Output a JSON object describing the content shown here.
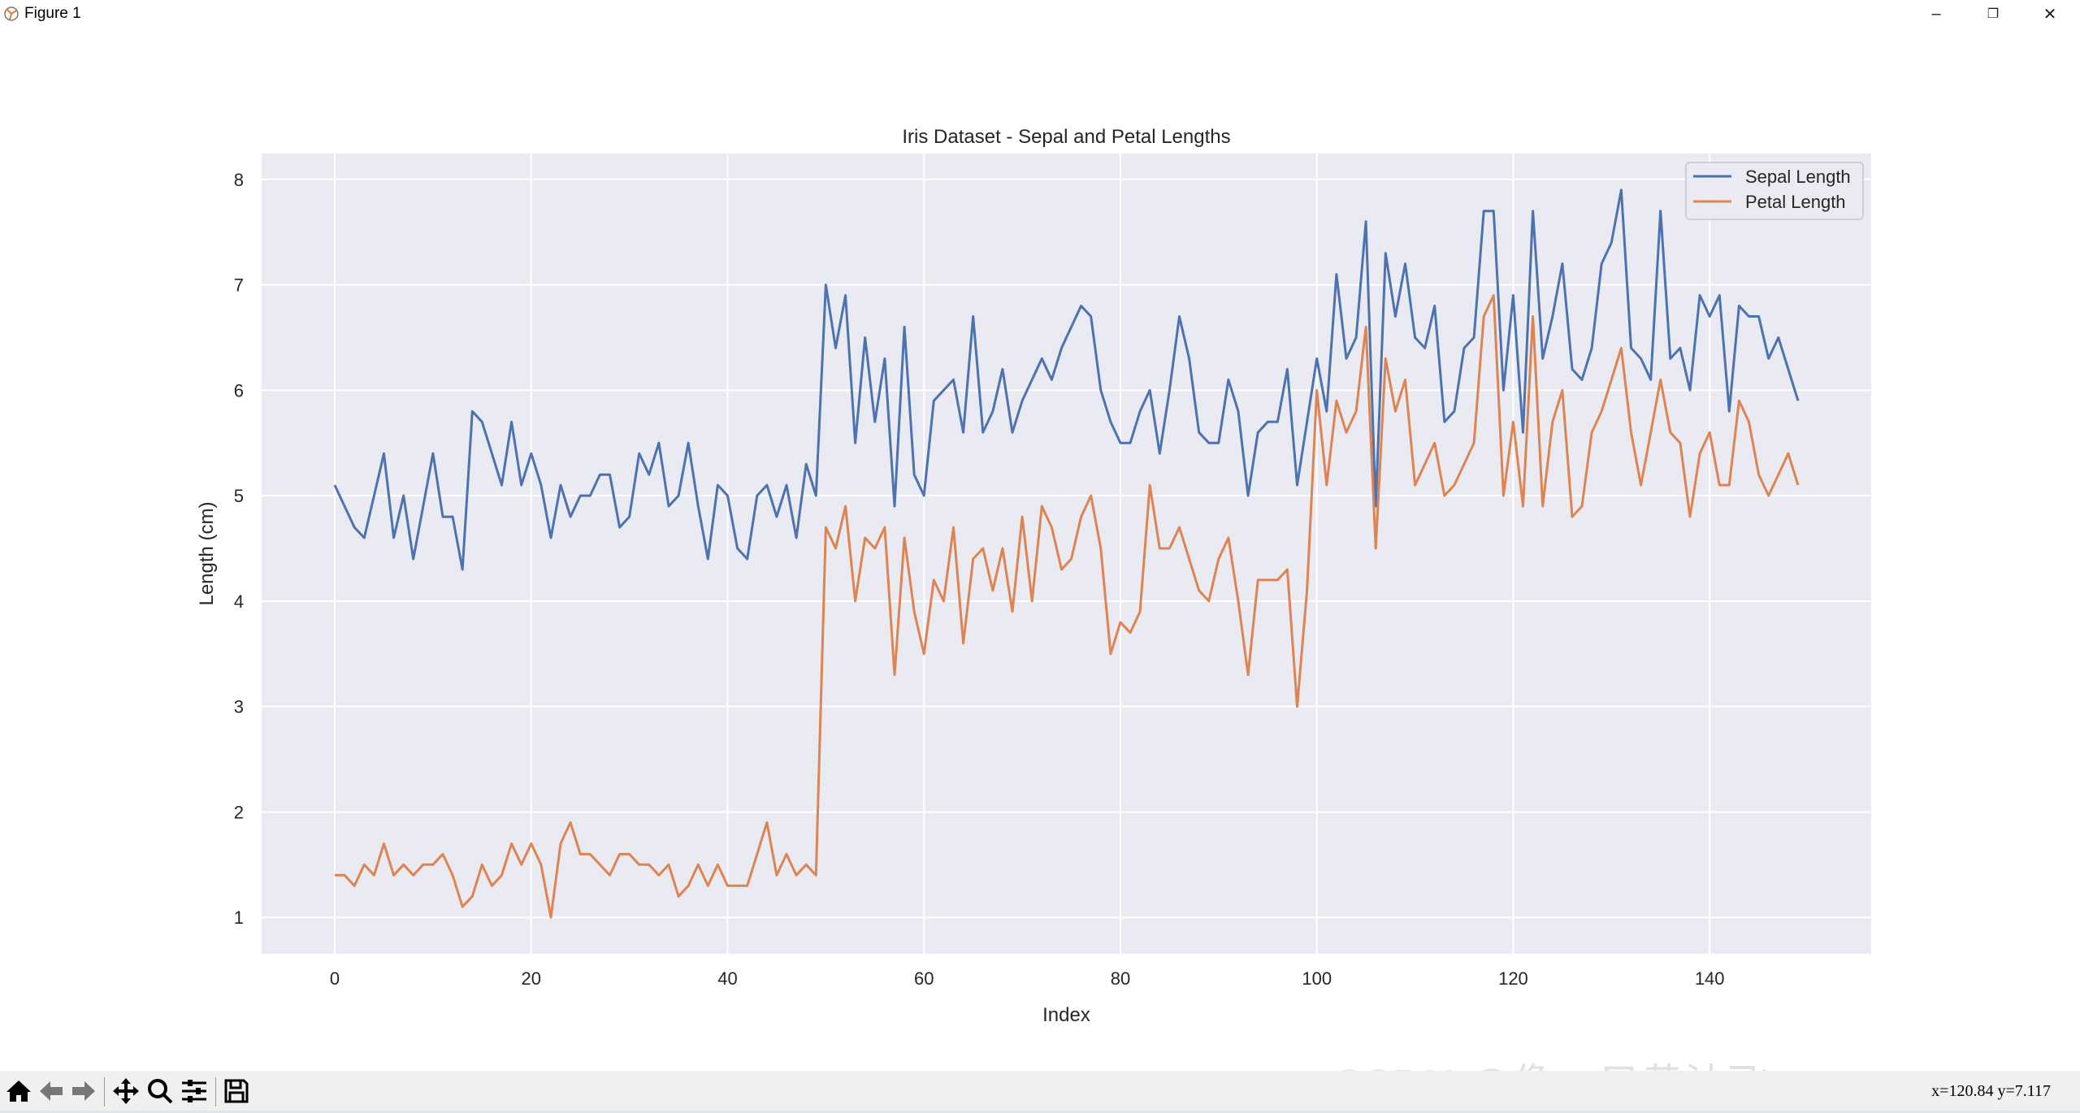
{
  "window": {
    "title": "Figure 1",
    "minimize": "–",
    "restore": "❐",
    "close": "✕"
  },
  "toolbar": {
    "buttons": [
      "home-icon",
      "back-icon",
      "forward-icon",
      "pan-icon",
      "zoom-icon",
      "configure-subplots-icon",
      "save-icon"
    ],
    "coords": "x=120.84  y=7.117"
  },
  "watermark": "CSDN @像一只黄油飞",
  "colors": {
    "sepal": "#4c72b0",
    "petal": "#dd8452",
    "axes_bg": "#eaeaf2",
    "grid": "#ffffff"
  },
  "chart_data": {
    "type": "line",
    "title": "Iris Dataset - Sepal and Petal Lengths",
    "xlabel": "Index",
    "ylabel": "Length (cm)",
    "xlim": [
      -7.45,
      156.45
    ],
    "ylim": [
      0.655,
      8.245
    ],
    "xticks": [
      0,
      20,
      40,
      60,
      80,
      100,
      120,
      140
    ],
    "yticks": [
      1,
      2,
      3,
      4,
      5,
      6,
      7,
      8
    ],
    "grid": true,
    "legend_position": "top-right",
    "series": [
      {
        "name": "Sepal Length",
        "color": "#4c72b0",
        "values": [
          5.1,
          4.9,
          4.7,
          4.6,
          5.0,
          5.4,
          4.6,
          5.0,
          4.4,
          4.9,
          5.4,
          4.8,
          4.8,
          4.3,
          5.8,
          5.7,
          5.4,
          5.1,
          5.7,
          5.1,
          5.4,
          5.1,
          4.6,
          5.1,
          4.8,
          5.0,
          5.0,
          5.2,
          5.2,
          4.7,
          4.8,
          5.4,
          5.2,
          5.5,
          4.9,
          5.0,
          5.5,
          4.9,
          4.4,
          5.1,
          5.0,
          4.5,
          4.4,
          5.0,
          5.1,
          4.8,
          5.1,
          4.6,
          5.3,
          5.0,
          7.0,
          6.4,
          6.9,
          5.5,
          6.5,
          5.7,
          6.3,
          4.9,
          6.6,
          5.2,
          5.0,
          5.9,
          6.0,
          6.1,
          5.6,
          6.7,
          5.6,
          5.8,
          6.2,
          5.6,
          5.9,
          6.1,
          6.3,
          6.1,
          6.4,
          6.6,
          6.8,
          6.7,
          6.0,
          5.7,
          5.5,
          5.5,
          5.8,
          6.0,
          5.4,
          6.0,
          6.7,
          6.3,
          5.6,
          5.5,
          5.5,
          6.1,
          5.8,
          5.0,
          5.6,
          5.7,
          5.7,
          6.2,
          5.1,
          5.7,
          6.3,
          5.8,
          7.1,
          6.3,
          6.5,
          7.6,
          4.9,
          7.3,
          6.7,
          7.2,
          6.5,
          6.4,
          6.8,
          5.7,
          5.8,
          6.4,
          6.5,
          7.7,
          7.7,
          6.0,
          6.9,
          5.6,
          7.7,
          6.3,
          6.7,
          7.2,
          6.2,
          6.1,
          6.4,
          7.2,
          7.4,
          7.9,
          6.4,
          6.3,
          6.1,
          7.7,
          6.3,
          6.4,
          6.0,
          6.9,
          6.7,
          6.9,
          5.8,
          6.8,
          6.7,
          6.7,
          6.3,
          6.5,
          6.2,
          5.9
        ]
      },
      {
        "name": "Petal Length",
        "color": "#dd8452",
        "values": [
          1.4,
          1.4,
          1.3,
          1.5,
          1.4,
          1.7,
          1.4,
          1.5,
          1.4,
          1.5,
          1.5,
          1.6,
          1.4,
          1.1,
          1.2,
          1.5,
          1.3,
          1.4,
          1.7,
          1.5,
          1.7,
          1.5,
          1.0,
          1.7,
          1.9,
          1.6,
          1.6,
          1.5,
          1.4,
          1.6,
          1.6,
          1.5,
          1.5,
          1.4,
          1.5,
          1.2,
          1.3,
          1.5,
          1.3,
          1.5,
          1.3,
          1.3,
          1.3,
          1.6,
          1.9,
          1.4,
          1.6,
          1.4,
          1.5,
          1.4,
          4.7,
          4.5,
          4.9,
          4.0,
          4.6,
          4.5,
          4.7,
          3.3,
          4.6,
          3.9,
          3.5,
          4.2,
          4.0,
          4.7,
          3.6,
          4.4,
          4.5,
          4.1,
          4.5,
          3.9,
          4.8,
          4.0,
          4.9,
          4.7,
          4.3,
          4.4,
          4.8,
          5.0,
          4.5,
          3.5,
          3.8,
          3.7,
          3.9,
          5.1,
          4.5,
          4.5,
          4.7,
          4.4,
          4.1,
          4.0,
          4.4,
          4.6,
          4.0,
          3.3,
          4.2,
          4.2,
          4.2,
          4.3,
          3.0,
          4.1,
          6.0,
          5.1,
          5.9,
          5.6,
          5.8,
          6.6,
          4.5,
          6.3,
          5.8,
          6.1,
          5.1,
          5.3,
          5.5,
          5.0,
          5.1,
          5.3,
          5.5,
          6.7,
          6.9,
          5.0,
          5.7,
          4.9,
          6.7,
          4.9,
          5.7,
          6.0,
          4.8,
          4.9,
          5.6,
          5.8,
          6.1,
          6.4,
          5.6,
          5.1,
          5.6,
          6.1,
          5.6,
          5.5,
          4.8,
          5.4,
          5.6,
          5.1,
          5.1,
          5.9,
          5.7,
          5.2,
          5.0,
          5.2,
          5.4,
          5.1
        ]
      }
    ]
  }
}
